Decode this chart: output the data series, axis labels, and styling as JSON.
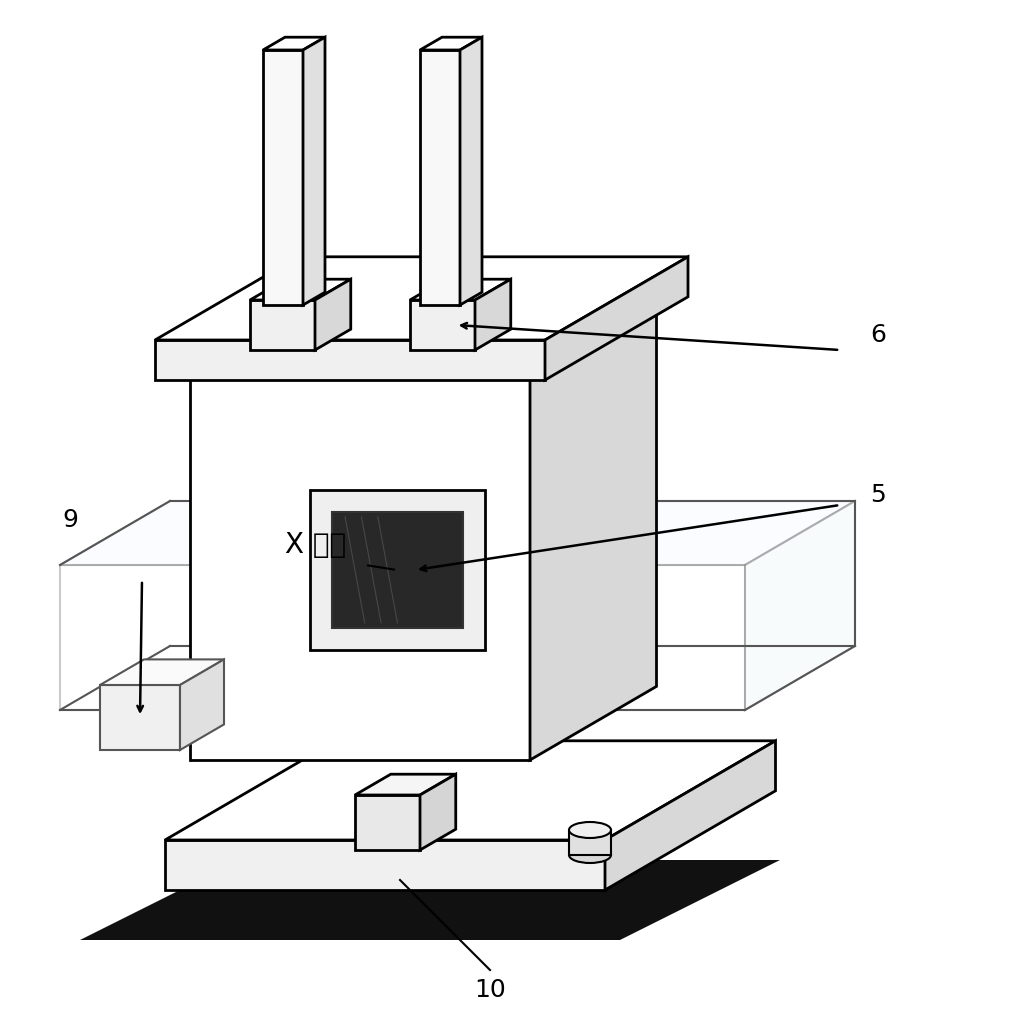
{
  "bg_color": "#ffffff",
  "ec": "#000000",
  "shadow_color": "#111111",
  "face_white": "#ffffff",
  "face_light": "#f0f0f0",
  "face_mid": "#d8d8d8",
  "face_side": "#c8c8c8",
  "transparent_fc": "#f5fbfd",
  "transparent_ec": "#555555",
  "window_outer": "#e8e8e8",
  "window_inner": "#2a2a2a",
  "label_fontsize": 18,
  "xray_fontsize": 20,
  "labels": {
    "5": "5",
    "6": "6",
    "9": "9",
    "10": "10"
  },
  "xray_text": "X 射线"
}
